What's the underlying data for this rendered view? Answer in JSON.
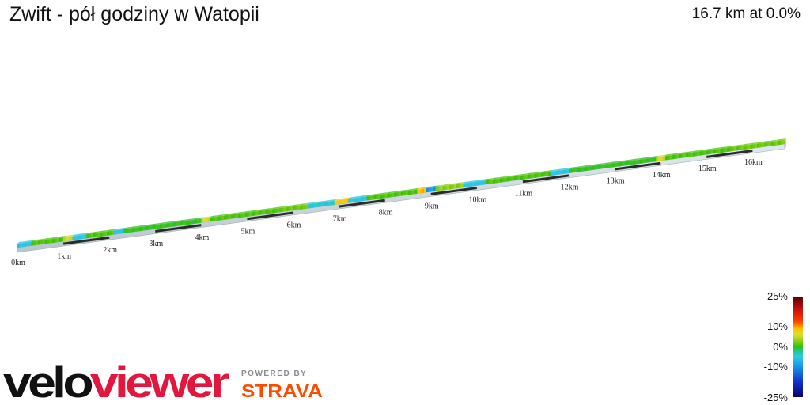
{
  "header": {
    "title": "Zwift - pół godziny w Watopii",
    "summary": "16.7 km at 0.0%"
  },
  "chart_data": {
    "type": "elevation-profile-3d",
    "title": "Zwift - pół godziny w Watopii",
    "distance_km": 16.7,
    "avg_grade_pct": 0.0,
    "x_ticks_km": [
      0,
      1,
      2,
      3,
      4,
      5,
      6,
      7,
      8,
      9,
      10,
      11,
      12,
      13,
      14,
      15,
      16
    ],
    "x_tick_labels": [
      "0km",
      "1km",
      "2km",
      "3km",
      "4km",
      "5km",
      "6km",
      "7km",
      "8km",
      "9km",
      "10km",
      "11km",
      "12km",
      "13km",
      "14km",
      "15km",
      "16km"
    ],
    "grade_segments": [
      {
        "from_km": 0.0,
        "to_km": 0.3,
        "grade_pct": -5
      },
      {
        "from_km": 0.3,
        "to_km": 1.0,
        "grade_pct": 1
      },
      {
        "from_km": 1.0,
        "to_km": 1.2,
        "grade_pct": 5
      },
      {
        "from_km": 1.2,
        "to_km": 1.5,
        "grade_pct": -5
      },
      {
        "from_km": 1.5,
        "to_km": 2.1,
        "grade_pct": 1
      },
      {
        "from_km": 2.1,
        "to_km": 2.3,
        "grade_pct": -5
      },
      {
        "from_km": 2.3,
        "to_km": 4.0,
        "grade_pct": 0
      },
      {
        "from_km": 4.0,
        "to_km": 4.2,
        "grade_pct": 5
      },
      {
        "from_km": 4.2,
        "to_km": 5.7,
        "grade_pct": 1
      },
      {
        "from_km": 5.7,
        "to_km": 6.3,
        "grade_pct": 2
      },
      {
        "from_km": 6.3,
        "to_km": 6.9,
        "grade_pct": -4
      },
      {
        "from_km": 6.9,
        "to_km": 7.2,
        "grade_pct": 7
      },
      {
        "from_km": 7.2,
        "to_km": 7.6,
        "grade_pct": -5
      },
      {
        "from_km": 7.6,
        "to_km": 8.7,
        "grade_pct": 1
      },
      {
        "from_km": 8.7,
        "to_km": 8.9,
        "grade_pct": 8
      },
      {
        "from_km": 8.9,
        "to_km": 9.1,
        "grade_pct": -10
      },
      {
        "from_km": 9.1,
        "to_km": 9.7,
        "grade_pct": 3
      },
      {
        "from_km": 9.7,
        "to_km": 10.2,
        "grade_pct": -5
      },
      {
        "from_km": 10.2,
        "to_km": 11.6,
        "grade_pct": 1
      },
      {
        "from_km": 11.6,
        "to_km": 12.0,
        "grade_pct": -5
      },
      {
        "from_km": 12.0,
        "to_km": 13.9,
        "grade_pct": 0
      },
      {
        "from_km": 13.9,
        "to_km": 14.1,
        "grade_pct": 5
      },
      {
        "from_km": 14.1,
        "to_km": 15.5,
        "grade_pct": 1
      },
      {
        "from_km": 15.5,
        "to_km": 16.7,
        "grade_pct": 2
      }
    ],
    "legend": {
      "type": "color-scale",
      "min_pct": -25,
      "max_pct": 25,
      "labels": [
        "25%",
        "10%",
        "0%",
        "-10%",
        "-25%"
      ]
    }
  },
  "branding": {
    "logo_left": "velo",
    "logo_right": "viewer",
    "powered_by": "POWERED BY",
    "strava": "STRAVA"
  },
  "colors": {
    "velo": "#111111",
    "viewer": "#e3173e",
    "strava": "#fc4c02"
  }
}
